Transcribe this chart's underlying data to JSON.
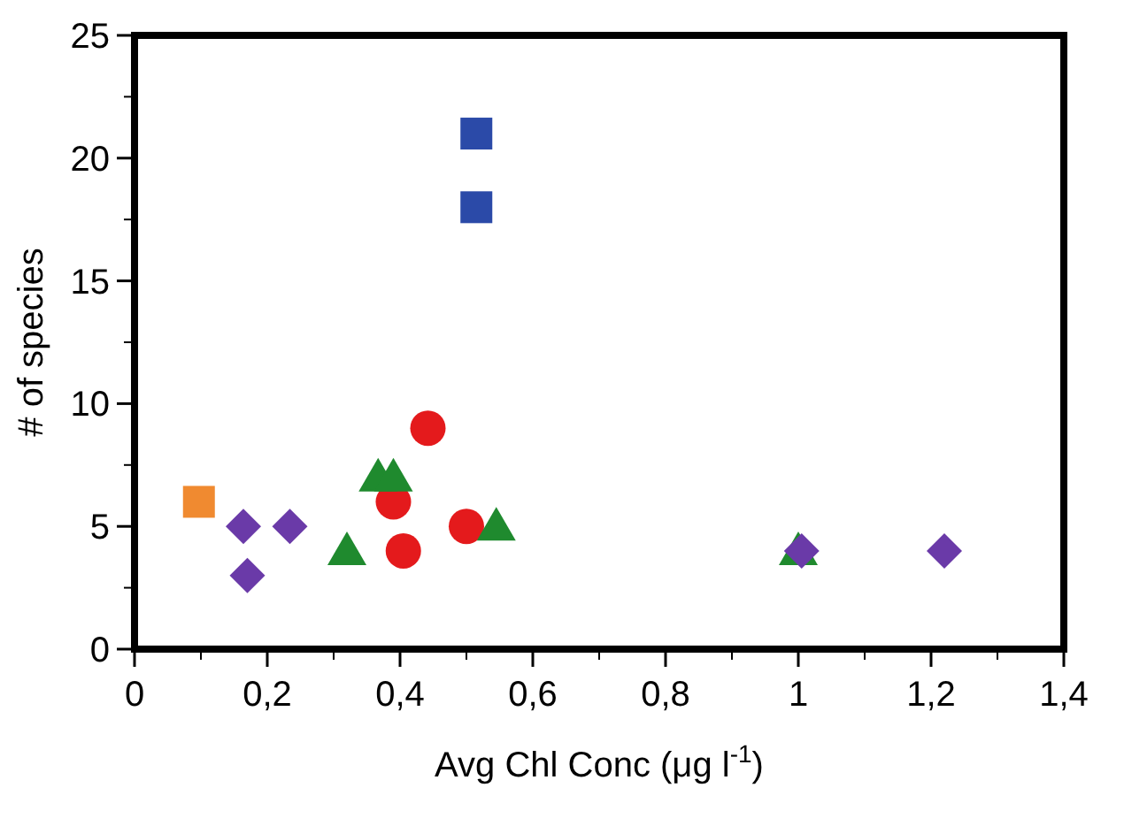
{
  "chart_data": {
    "type": "scatter",
    "xlabel": "Avg Chl Conc (μg l$^{-1}$)",
    "ylabel": "# of species",
    "xlim": [
      0,
      1.4
    ],
    "ylim": [
      0,
      25
    ],
    "xticks": [
      0,
      {
        "value": 0.2,
        "label": "0,2"
      },
      {
        "value": 0.4,
        "label": "0,4"
      },
      {
        "value": 0.6,
        "label": "0,6"
      },
      {
        "value": 0.8,
        "label": "0,8"
      },
      1,
      {
        "value": 1.2,
        "label": "1,2"
      },
      {
        "value": 1.4,
        "label": "1,4"
      }
    ],
    "yticks": [
      0,
      5,
      10,
      15,
      20,
      25
    ],
    "grid": false,
    "series": [
      {
        "color": "#2b4aa8",
        "marker": "square",
        "x": [
          0.515,
          0.515
        ],
        "values": [
          21,
          18
        ]
      },
      {
        "color": "#f08a30",
        "marker": "square",
        "x": [
          0.097
        ],
        "values": [
          6
        ]
      },
      {
        "color": "#e41a1c",
        "marker": "circle",
        "x": [
          0.442,
          0.39,
          0.405,
          0.5
        ],
        "values": [
          9,
          6,
          4,
          5
        ]
      },
      {
        "color": "#1f8a2e",
        "marker": "triangle",
        "x": [
          0.367,
          0.39,
          0.32,
          0.545,
          1.0
        ],
        "values": [
          7,
          7,
          4,
          5,
          4
        ]
      },
      {
        "color": "#6a3aa8",
        "marker": "diamond",
        "x": [
          0.164,
          0.17,
          0.234,
          1.005,
          1.22
        ],
        "values": [
          5,
          3,
          5,
          4,
          4
        ]
      }
    ]
  }
}
